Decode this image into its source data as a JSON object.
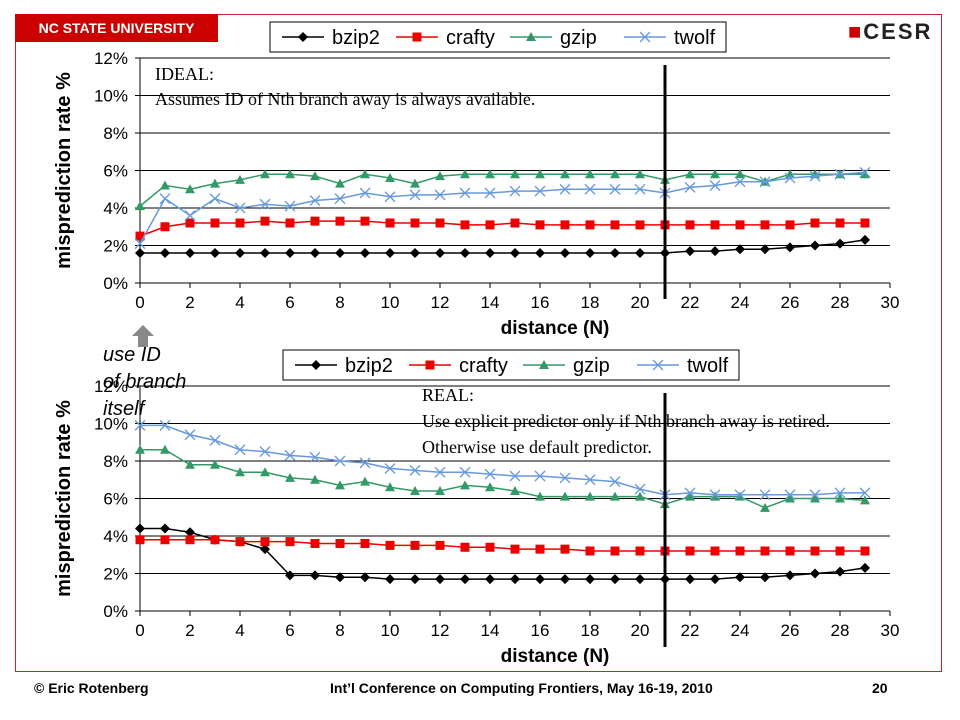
{
  "header": {
    "university": "NC STATE UNIVERSITY",
    "logo": "CESR"
  },
  "footer": {
    "author": "© Eric Rotenberg",
    "conference": "Int’l Conference on Computing Frontiers, May 16-19, 2010",
    "page": "20"
  },
  "callout": {
    "text": "use ID\nof branch\nitself",
    "icon": "up-arrow-icon"
  },
  "colors": {
    "bzip2": "#000000",
    "crafty": "#ee0000",
    "gzip": "#339966",
    "twolf": "#6699dd",
    "frame": "#cc2222"
  },
  "chart_data": [
    {
      "type": "line",
      "annotation": [
        "IDEAL:",
        "Assumes ID of Nth branch away is always available."
      ],
      "xlabel": "distance (N)",
      "ylabel": "misprediction rate %",
      "xlim": [
        0,
        30
      ],
      "ylim": [
        0,
        12
      ],
      "x_ticks": [
        "0",
        "2",
        "4",
        "6",
        "8",
        "10",
        "12",
        "14",
        "16",
        "18",
        "20",
        "22",
        "24",
        "26",
        "28",
        "30"
      ],
      "y_ticks": [
        "0%",
        "2%",
        "4%",
        "6%",
        "8%",
        "10%",
        "12%"
      ],
      "grid": true,
      "legend_position": "top",
      "vline_x": 21,
      "x": [
        0,
        1,
        2,
        3,
        4,
        5,
        6,
        7,
        8,
        9,
        10,
        11,
        12,
        13,
        14,
        15,
        16,
        17,
        18,
        19,
        20,
        21,
        22,
        23,
        24,
        25,
        26,
        27,
        28,
        29
      ],
      "series": [
        {
          "name": "bzip2",
          "marker": "diamond",
          "values": [
            1.6,
            1.6,
            1.6,
            1.6,
            1.6,
            1.6,
            1.6,
            1.6,
            1.6,
            1.6,
            1.6,
            1.6,
            1.6,
            1.6,
            1.6,
            1.6,
            1.6,
            1.6,
            1.6,
            1.6,
            1.6,
            1.6,
            1.7,
            1.7,
            1.8,
            1.8,
            1.9,
            2.0,
            2.1,
            2.3
          ]
        },
        {
          "name": "crafty",
          "marker": "square",
          "values": [
            2.5,
            3.0,
            3.2,
            3.2,
            3.2,
            3.3,
            3.2,
            3.3,
            3.3,
            3.3,
            3.2,
            3.2,
            3.2,
            3.1,
            3.1,
            3.2,
            3.1,
            3.1,
            3.1,
            3.1,
            3.1,
            3.1,
            3.1,
            3.1,
            3.1,
            3.1,
            3.1,
            3.2,
            3.2,
            3.2
          ]
        },
        {
          "name": "gzip",
          "marker": "triangle",
          "values": [
            4.1,
            5.2,
            5.0,
            5.3,
            5.5,
            5.8,
            5.8,
            5.7,
            5.3,
            5.8,
            5.6,
            5.3,
            5.7,
            5.8,
            5.8,
            5.8,
            5.8,
            5.8,
            5.8,
            5.8,
            5.8,
            5.5,
            5.8,
            5.8,
            5.8,
            5.4,
            5.8,
            5.8,
            5.8,
            5.8
          ]
        },
        {
          "name": "twolf",
          "marker": "x",
          "values": [
            2.1,
            4.5,
            3.6,
            4.5,
            4.0,
            4.2,
            4.1,
            4.4,
            4.5,
            4.8,
            4.6,
            4.7,
            4.7,
            4.8,
            4.8,
            4.9,
            4.9,
            5.0,
            5.0,
            5.0,
            5.0,
            4.8,
            5.1,
            5.2,
            5.4,
            5.4,
            5.6,
            5.7,
            5.8,
            5.9
          ]
        }
      ]
    },
    {
      "type": "line",
      "annotation": [
        "REAL:",
        "Use explicit predictor only if Nth branch away is retired.",
        "Otherwise use default predictor."
      ],
      "xlabel": "distance (N)",
      "ylabel": "misprediction rate %",
      "xlim": [
        0,
        30
      ],
      "ylim": [
        0,
        12
      ],
      "x_ticks": [
        "0",
        "2",
        "4",
        "6",
        "8",
        "10",
        "12",
        "14",
        "16",
        "18",
        "20",
        "22",
        "24",
        "26",
        "28",
        "30"
      ],
      "y_ticks": [
        "0%",
        "2%",
        "4%",
        "6%",
        "8%",
        "10%",
        "12%"
      ],
      "grid": true,
      "legend_position": "top",
      "vline_x": 21,
      "x": [
        0,
        1,
        2,
        3,
        4,
        5,
        6,
        7,
        8,
        9,
        10,
        11,
        12,
        13,
        14,
        15,
        16,
        17,
        18,
        19,
        20,
        21,
        22,
        23,
        24,
        25,
        26,
        27,
        28,
        29
      ],
      "series": [
        {
          "name": "bzip2",
          "marker": "diamond",
          "values": [
            4.4,
            4.4,
            4.2,
            3.8,
            3.7,
            3.3,
            1.9,
            1.9,
            1.8,
            1.8,
            1.7,
            1.7,
            1.7,
            1.7,
            1.7,
            1.7,
            1.7,
            1.7,
            1.7,
            1.7,
            1.7,
            1.7,
            1.7,
            1.7,
            1.8,
            1.8,
            1.9,
            2.0,
            2.1,
            2.3
          ]
        },
        {
          "name": "crafty",
          "marker": "square",
          "values": [
            3.8,
            3.8,
            3.8,
            3.8,
            3.7,
            3.7,
            3.7,
            3.6,
            3.6,
            3.6,
            3.5,
            3.5,
            3.5,
            3.4,
            3.4,
            3.3,
            3.3,
            3.3,
            3.2,
            3.2,
            3.2,
            3.2,
            3.2,
            3.2,
            3.2,
            3.2,
            3.2,
            3.2,
            3.2,
            3.2
          ]
        },
        {
          "name": "gzip",
          "marker": "triangle",
          "values": [
            8.6,
            8.6,
            7.8,
            7.8,
            7.4,
            7.4,
            7.1,
            7.0,
            6.7,
            6.9,
            6.6,
            6.4,
            6.4,
            6.7,
            6.6,
            6.4,
            6.1,
            6.1,
            6.1,
            6.1,
            6.1,
            5.7,
            6.1,
            6.1,
            6.1,
            5.5,
            6.0,
            6.0,
            6.0,
            5.9
          ]
        },
        {
          "name": "twolf",
          "marker": "x",
          "values": [
            9.9,
            9.9,
            9.4,
            9.1,
            8.6,
            8.5,
            8.3,
            8.2,
            8.0,
            7.9,
            7.6,
            7.5,
            7.4,
            7.4,
            7.3,
            7.2,
            7.2,
            7.1,
            7.0,
            6.9,
            6.5,
            6.2,
            6.3,
            6.2,
            6.2,
            6.2,
            6.2,
            6.2,
            6.3,
            6.3
          ]
        }
      ]
    }
  ]
}
